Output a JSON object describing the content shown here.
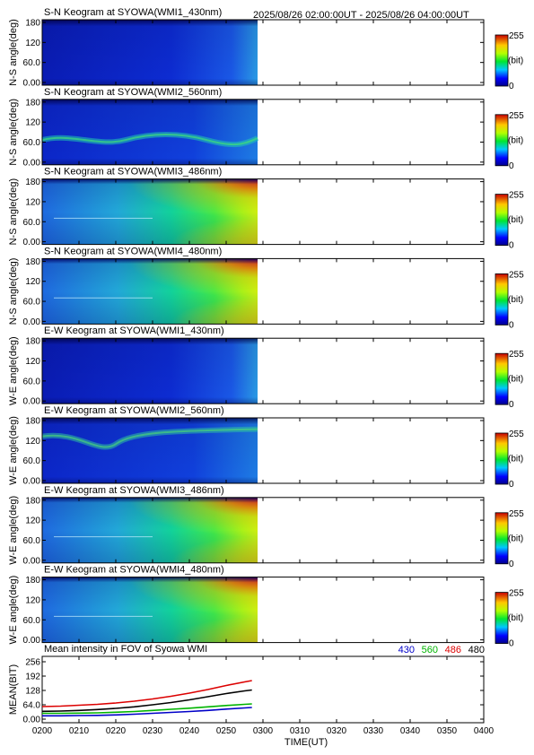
{
  "header": {
    "time_range": "2025/08/26 02:00:00UT - 2025/08/26 04:00:00UT"
  },
  "colorbar": {
    "max_label": "255",
    "unit_label": "(bit)",
    "min_label": "0"
  },
  "keograms": [
    {
      "title": "S-N Keogram at SYOWA(WMI1_430nm)",
      "ylabel": "N-S angle(deg)",
      "yticks": [
        "180",
        "120",
        "60.0",
        "0.00"
      ],
      "style": "faint"
    },
    {
      "title": "S-N Keogram at SYOWA(WMI2_560nm)",
      "ylabel": "N-S angle(deg)",
      "yticks": [
        "180",
        "120",
        "60.0",
        "0.00"
      ],
      "style": "arc"
    },
    {
      "title": "S-N Keogram at SYOWA(WMI3_486nm)",
      "ylabel": "N-S angle(deg)",
      "yticks": [
        "180",
        "120",
        "60.0",
        "0.00"
      ],
      "style": "bright"
    },
    {
      "title": "S-N Keogram at SYOWA(WMI4_480nm)",
      "ylabel": "N-S angle(deg)",
      "yticks": [
        "180",
        "120",
        "60.0",
        "0.00"
      ],
      "style": "bright"
    },
    {
      "title": "E-W Keogram at SYOWA(WMI1_430nm)",
      "ylabel": "W-E angle(deg)",
      "yticks": [
        "180",
        "120",
        "60.0",
        "0.00"
      ],
      "style": "faint"
    },
    {
      "title": "E-W Keogram at SYOWA(WMI2_560nm)",
      "ylabel": "W-E angle(deg)",
      "yticks": [
        "180",
        "120",
        "60.0",
        "0.00"
      ],
      "style": "arc2"
    },
    {
      "title": "E-W Keogram at SYOWA(WMI3_486nm)",
      "ylabel": "W-E angle(deg)",
      "yticks": [
        "180",
        "120",
        "60.0",
        "0.00"
      ],
      "style": "bright"
    },
    {
      "title": "E-W Keogram at SYOWA(WMI4_480nm)",
      "ylabel": "W-E angle(deg)",
      "yticks": [
        "180",
        "120",
        "60.0",
        "0.00"
      ],
      "style": "bright"
    }
  ],
  "chart_data": {
    "type": "line",
    "title": "Mean intensity in FOV of Syowa WMI",
    "xlabel": "TIME(UT)",
    "ylabel": "MEAN(BIT)",
    "xticks": [
      "0200",
      "0210",
      "0220",
      "0230",
      "0240",
      "0250",
      "0300",
      "0310",
      "0320",
      "0330",
      "0340",
      "0350",
      "0400"
    ],
    "yticks": [
      "256",
      "192",
      "128",
      "64.0",
      "0.00"
    ],
    "xlim": [
      0,
      120
    ],
    "ylim": [
      0,
      256
    ],
    "x": [
      0,
      5,
      10,
      15,
      20,
      25,
      30,
      35,
      40,
      45,
      50,
      55,
      57
    ],
    "series": [
      {
        "name": "430",
        "color": "#0000c8",
        "values": [
          15,
          15,
          16,
          17,
          19,
          22,
          26,
          30,
          34,
          39,
          45,
          50,
          52
        ]
      },
      {
        "name": "560",
        "color": "#00b400",
        "values": [
          26,
          26,
          27,
          28,
          31,
          34,
          39,
          44,
          49,
          55,
          61,
          66,
          68
        ]
      },
      {
        "name": "486",
        "color": "#dc0000",
        "values": [
          56,
          58,
          62,
          66,
          72,
          80,
          90,
          102,
          116,
          132,
          150,
          166,
          172
        ]
      },
      {
        "name": "480",
        "color": "#000000",
        "values": [
          35,
          36,
          39,
          43,
          48,
          55,
          64,
          74,
          86,
          100,
          114,
          126,
          130
        ]
      }
    ]
  }
}
